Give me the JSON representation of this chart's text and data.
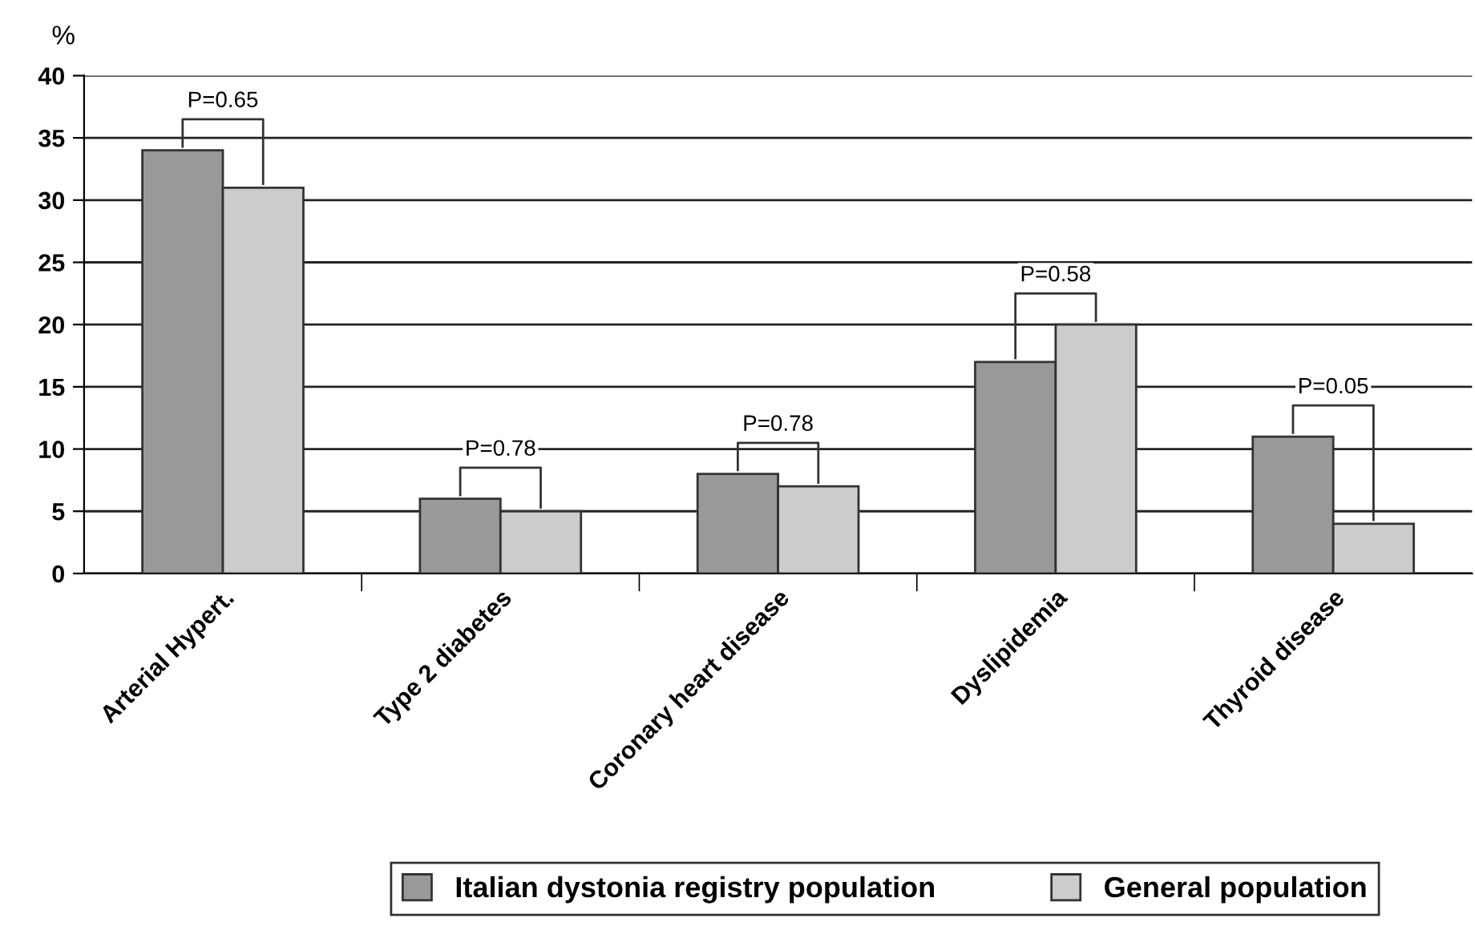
{
  "chart_data": {
    "type": "bar",
    "ylabel": "%",
    "categories": [
      "Arterial Hypert.",
      "Type 2 diabetes",
      "Coronary heart disease",
      "Dyslipidemia",
      "Thyroid disease"
    ],
    "series": [
      {
        "name": "Italian dystonia registry population",
        "color": "#999999",
        "values": [
          34,
          6,
          8,
          17,
          11
        ]
      },
      {
        "name": "General population",
        "color": "#cccccc",
        "values": [
          31,
          5,
          7,
          20,
          4
        ]
      }
    ],
    "ylim": [
      0,
      40
    ],
    "yticks": [
      0,
      5,
      10,
      15,
      20,
      25,
      30,
      35,
      40
    ],
    "grid": "y",
    "legend": "bottom",
    "annotations": [
      "P=0.65",
      "P=0.78",
      "P=0.78",
      "P=0.58",
      "P=0.05"
    ]
  }
}
